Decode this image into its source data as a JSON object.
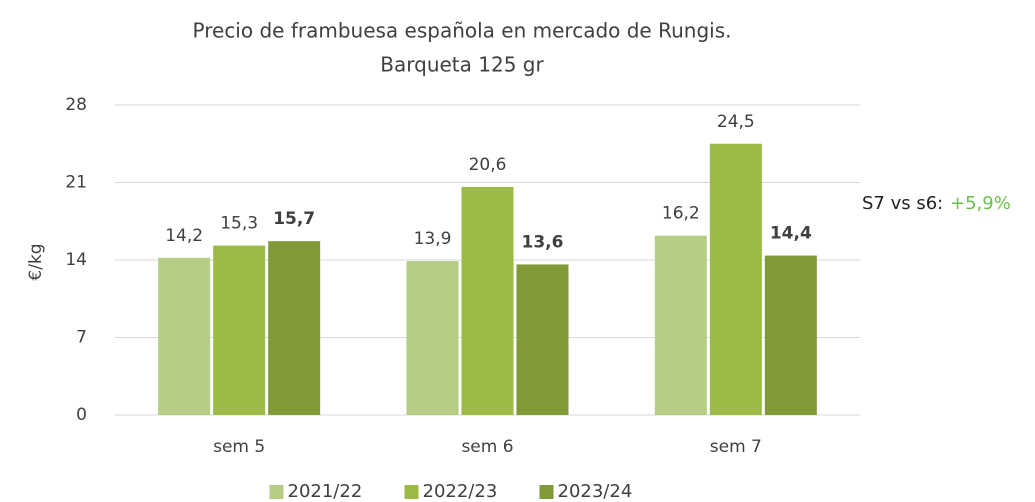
{
  "chart_data": {
    "type": "bar",
    "title": "Precio de frambuesa española en mercado de Rungis.",
    "subtitle": "Barqueta 125 gr",
    "y_label": "€/kg",
    "categories": [
      "sem 5",
      "sem 6",
      "sem 7"
    ],
    "series": [
      {
        "name": "2021/22",
        "color": "#b6cd85",
        "values": [
          14.2,
          13.9,
          16.2
        ],
        "value_labels": [
          "14,2",
          "13,9",
          "16,2"
        ]
      },
      {
        "name": "2022/23",
        "color": "#9bbb45",
        "values": [
          15.3,
          20.6,
          24.5
        ],
        "value_labels": [
          "15,3",
          "20,6",
          "24,5"
        ]
      },
      {
        "name": "2023/24",
        "color": "#7f9a37",
        "values": [
          15.7,
          13.6,
          14.4
        ],
        "value_labels": [
          "15,7",
          "13,6",
          "14,4"
        ]
      }
    ],
    "ylim": [
      0,
      28
    ],
    "yticks": [
      0,
      7,
      14,
      21,
      28
    ],
    "grid": true,
    "legend": "bottom",
    "annotation": {
      "label": "S7 vs s6:",
      "change": "+5,9%"
    }
  }
}
